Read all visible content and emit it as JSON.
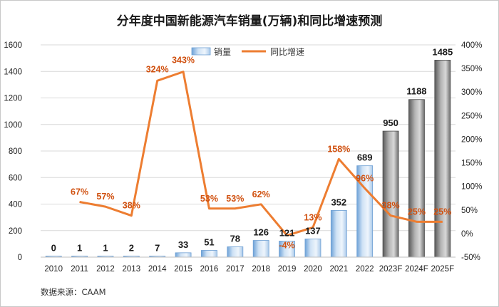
{
  "chart_data": {
    "type": "bar",
    "title": "分年度中国新能源汽车销量(万辆)和同比增速预测",
    "categories": [
      "2010",
      "2011",
      "2012",
      "2013",
      "2014",
      "2015",
      "2016",
      "2017",
      "2018",
      "2019",
      "2020",
      "2021",
      "2022",
      "2023F",
      "2024F",
      "2025F"
    ],
    "series": [
      {
        "name": "销量",
        "type": "bar",
        "axis": "left",
        "values": [
          0,
          1,
          1,
          2,
          7,
          33,
          51,
          78,
          126,
          121,
          137,
          352,
          689,
          950,
          1188,
          1485
        ],
        "labels": [
          "0",
          "1",
          "1",
          "2",
          "7",
          "33",
          "51",
          "78",
          "126",
          "121",
          "137",
          "352",
          "689",
          "950",
          "1188",
          "1485"
        ]
      },
      {
        "name": "同比增速",
        "type": "line",
        "axis": "right",
        "color": "#ed7d31",
        "values": [
          null,
          67,
          57,
          38,
          324,
          343,
          53,
          53,
          62,
          -4,
          13,
          158,
          96,
          38,
          25,
          25
        ],
        "labels": [
          "",
          "67%",
          "57%",
          "38%",
          "324%",
          "343%",
          "53%",
          "53%",
          "62%",
          "-4%",
          "13%",
          "158%",
          "96%",
          "38%",
          "25%",
          "25%"
        ]
      }
    ],
    "yleft": {
      "min": 0,
      "max": 1600,
      "ticks": [
        "0",
        "200",
        "400",
        "600",
        "800",
        "1000",
        "1200",
        "1400",
        "1600"
      ]
    },
    "yright": {
      "min": -50,
      "max": 400,
      "ticks": [
        "-50%",
        "0%",
        "50%",
        "100%",
        "150%",
        "200%",
        "250%",
        "300%",
        "350%",
        "400%"
      ]
    },
    "grid": true,
    "legend_position": "top-center",
    "source": "数据来源：CAAM",
    "colors": {
      "bar_actual": "#9dc3e6",
      "bar_forecast": "#7f7f7f",
      "line": "#ed7d31",
      "pct_label": "#d0500f"
    }
  }
}
